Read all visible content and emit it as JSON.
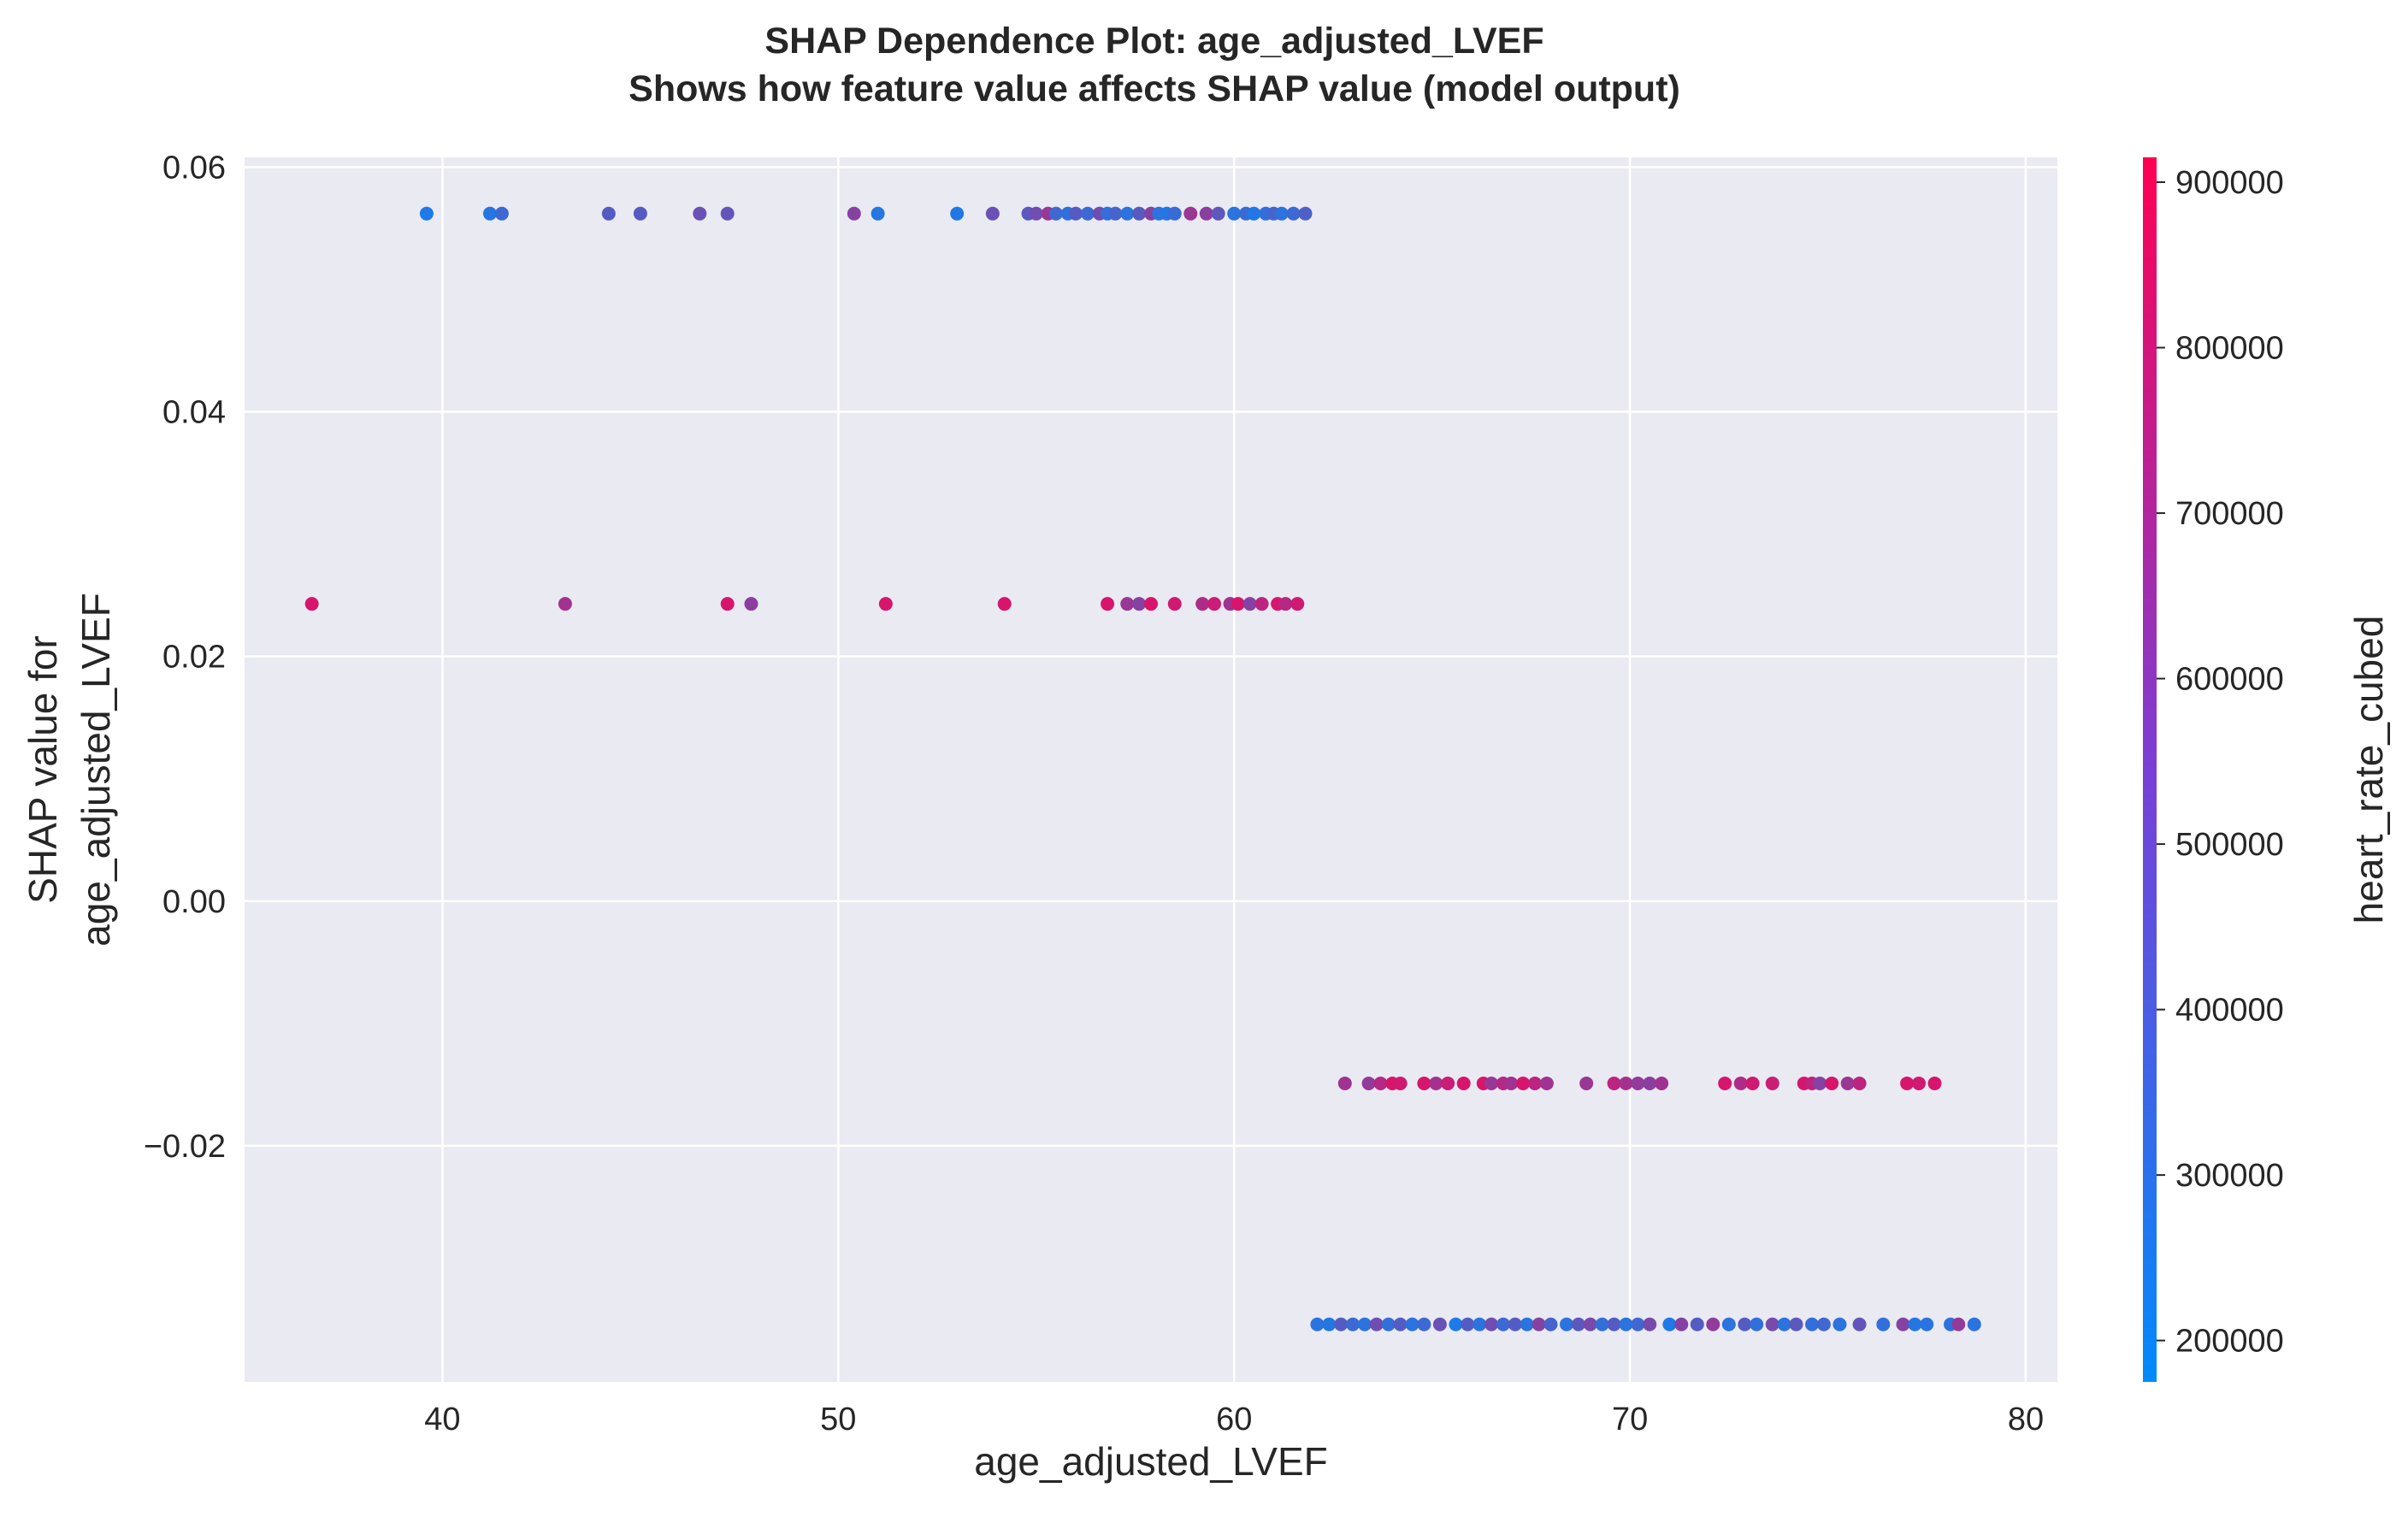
{
  "chart_data": {
    "type": "scatter",
    "title": "SHAP Dependence Plot: age_adjusted_LVEF",
    "subtitle": "Shows how feature value affects SHAP value (model output)",
    "xlabel": "age_adjusted_LVEF",
    "ylabel": [
      "SHAP value for",
      "age_adjusted_LVEF"
    ],
    "xlim": [
      35,
      80.8
    ],
    "ylim": [
      -0.0393,
      0.0608
    ],
    "xticks": [
      40,
      50,
      60,
      70,
      80
    ],
    "xtick_labels": [
      "40",
      "50",
      "60",
      "70",
      "80"
    ],
    "yticks": [
      -0.02,
      0.0,
      0.02,
      0.04,
      0.06
    ],
    "ytick_labels": [
      "−0.02",
      "0.00",
      "0.02",
      "0.04",
      "0.06"
    ],
    "grid": true,
    "colorbar": {
      "label": "heart_rate_cubed",
      "range": [
        175000,
        915000
      ],
      "ticks": [
        200000,
        300000,
        400000,
        500000,
        600000,
        700000,
        800000,
        900000
      ],
      "tick_labels": [
        "200000",
        "300000",
        "400000",
        "500000",
        "600000",
        "700000",
        "800000",
        "900000"
      ],
      "colormap": [
        "#008afb",
        "#ff0052"
      ]
    },
    "bands": [
      {
        "y": 0.0562,
        "points": [
          [
            39.6,
            260000
          ],
          [
            41.2,
            280000
          ],
          [
            41.5,
            350000
          ],
          [
            44.2,
            420000
          ],
          [
            45,
            420000
          ],
          [
            46.5,
            480000
          ],
          [
            47.2,
            460000
          ],
          [
            50.4,
            560000
          ],
          [
            51,
            280000
          ],
          [
            53,
            270000
          ],
          [
            53.9,
            480000
          ],
          [
            54.8,
            440000
          ],
          [
            55,
            500000
          ],
          [
            55.3,
            620000
          ],
          [
            55.5,
            360000
          ],
          [
            55.8,
            310000
          ],
          [
            56,
            420000
          ],
          [
            56.3,
            350000
          ],
          [
            56.6,
            500000
          ],
          [
            56.8,
            320000
          ],
          [
            57,
            380000
          ],
          [
            57.3,
            300000
          ],
          [
            57.6,
            430000
          ],
          [
            57.9,
            560000
          ],
          [
            58.1,
            300000
          ],
          [
            58.3,
            280000
          ],
          [
            58.5,
            340000
          ],
          [
            58.9,
            620000
          ],
          [
            59.3,
            580000
          ],
          [
            59.6,
            450000
          ],
          [
            60,
            300000
          ],
          [
            60.3,
            340000
          ],
          [
            60.5,
            270000
          ],
          [
            60.8,
            320000
          ],
          [
            61,
            380000
          ],
          [
            61.2,
            300000
          ],
          [
            61.5,
            350000
          ],
          [
            61.8,
            400000
          ]
        ]
      },
      {
        "y": 0.0243,
        "points": [
          [
            36.7,
            800000
          ],
          [
            43.1,
            650000
          ],
          [
            47.2,
            800000
          ],
          [
            47.8,
            580000
          ],
          [
            51.2,
            800000
          ],
          [
            54.2,
            800000
          ],
          [
            56.8,
            800000
          ],
          [
            57.3,
            620000
          ],
          [
            57.6,
            560000
          ],
          [
            57.9,
            800000
          ],
          [
            58.5,
            780000
          ],
          [
            59.2,
            680000
          ],
          [
            59.5,
            760000
          ],
          [
            59.9,
            640000
          ],
          [
            60.1,
            800000
          ],
          [
            60.4,
            560000
          ],
          [
            60.7,
            720000
          ],
          [
            61.1,
            800000
          ],
          [
            61.3,
            700000
          ],
          [
            61.6,
            780000
          ]
        ]
      },
      {
        "y": -0.0149,
        "points": [
          [
            62.8,
            640000
          ],
          [
            63.4,
            600000
          ],
          [
            63.7,
            700000
          ],
          [
            64,
            800000
          ],
          [
            64.2,
            780000
          ],
          [
            64.8,
            800000
          ],
          [
            65.1,
            650000
          ],
          [
            65.4,
            760000
          ],
          [
            65.8,
            800000
          ],
          [
            66.3,
            800000
          ],
          [
            66.5,
            620000
          ],
          [
            66.8,
            700000
          ],
          [
            67,
            640000
          ],
          [
            67.3,
            800000
          ],
          [
            67.6,
            720000
          ],
          [
            67.9,
            640000
          ],
          [
            68.9,
            620000
          ],
          [
            69.6,
            720000
          ],
          [
            69.9,
            650000
          ],
          [
            70.2,
            600000
          ],
          [
            70.5,
            580000
          ],
          [
            70.8,
            640000
          ],
          [
            72.4,
            800000
          ],
          [
            72.8,
            680000
          ],
          [
            73.1,
            780000
          ],
          [
            73.6,
            760000
          ],
          [
            74.4,
            800000
          ],
          [
            74.6,
            720000
          ],
          [
            74.8,
            560000
          ],
          [
            75.1,
            800000
          ],
          [
            75.5,
            620000
          ],
          [
            75.8,
            720000
          ],
          [
            77,
            800000
          ],
          [
            77.3,
            780000
          ],
          [
            77.7,
            800000
          ]
        ]
      },
      {
        "y": -0.0346,
        "points": [
          [
            62.1,
            300000
          ],
          [
            62.4,
            280000
          ],
          [
            62.7,
            420000
          ],
          [
            63,
            350000
          ],
          [
            63.3,
            300000
          ],
          [
            63.6,
            500000
          ],
          [
            63.9,
            320000
          ],
          [
            64.2,
            420000
          ],
          [
            64.5,
            300000
          ],
          [
            64.8,
            350000
          ],
          [
            65.2,
            480000
          ],
          [
            65.6,
            260000
          ],
          [
            65.9,
            420000
          ],
          [
            66.2,
            300000
          ],
          [
            66.5,
            500000
          ],
          [
            66.8,
            350000
          ],
          [
            67.1,
            420000
          ],
          [
            67.4,
            300000
          ],
          [
            67.7,
            560000
          ],
          [
            68,
            380000
          ],
          [
            68.4,
            300000
          ],
          [
            68.7,
            440000
          ],
          [
            69,
            520000
          ],
          [
            69.3,
            320000
          ],
          [
            69.6,
            420000
          ],
          [
            69.9,
            300000
          ],
          [
            70.2,
            360000
          ],
          [
            70.5,
            520000
          ],
          [
            71,
            260000
          ],
          [
            71.3,
            560000
          ],
          [
            71.7,
            420000
          ],
          [
            72.1,
            600000
          ],
          [
            72.5,
            300000
          ],
          [
            72.9,
            420000
          ],
          [
            73.2,
            320000
          ],
          [
            73.6,
            520000
          ],
          [
            73.9,
            300000
          ],
          [
            74.2,
            440000
          ],
          [
            74.6,
            320000
          ],
          [
            74.9,
            360000
          ],
          [
            75.3,
            300000
          ],
          [
            75.8,
            460000
          ],
          [
            76.4,
            320000
          ],
          [
            76.9,
            560000
          ],
          [
            77.2,
            280000
          ],
          [
            77.5,
            300000
          ],
          [
            78.1,
            300000
          ],
          [
            78.3,
            600000
          ],
          [
            78.7,
            300000
          ]
        ]
      }
    ]
  }
}
